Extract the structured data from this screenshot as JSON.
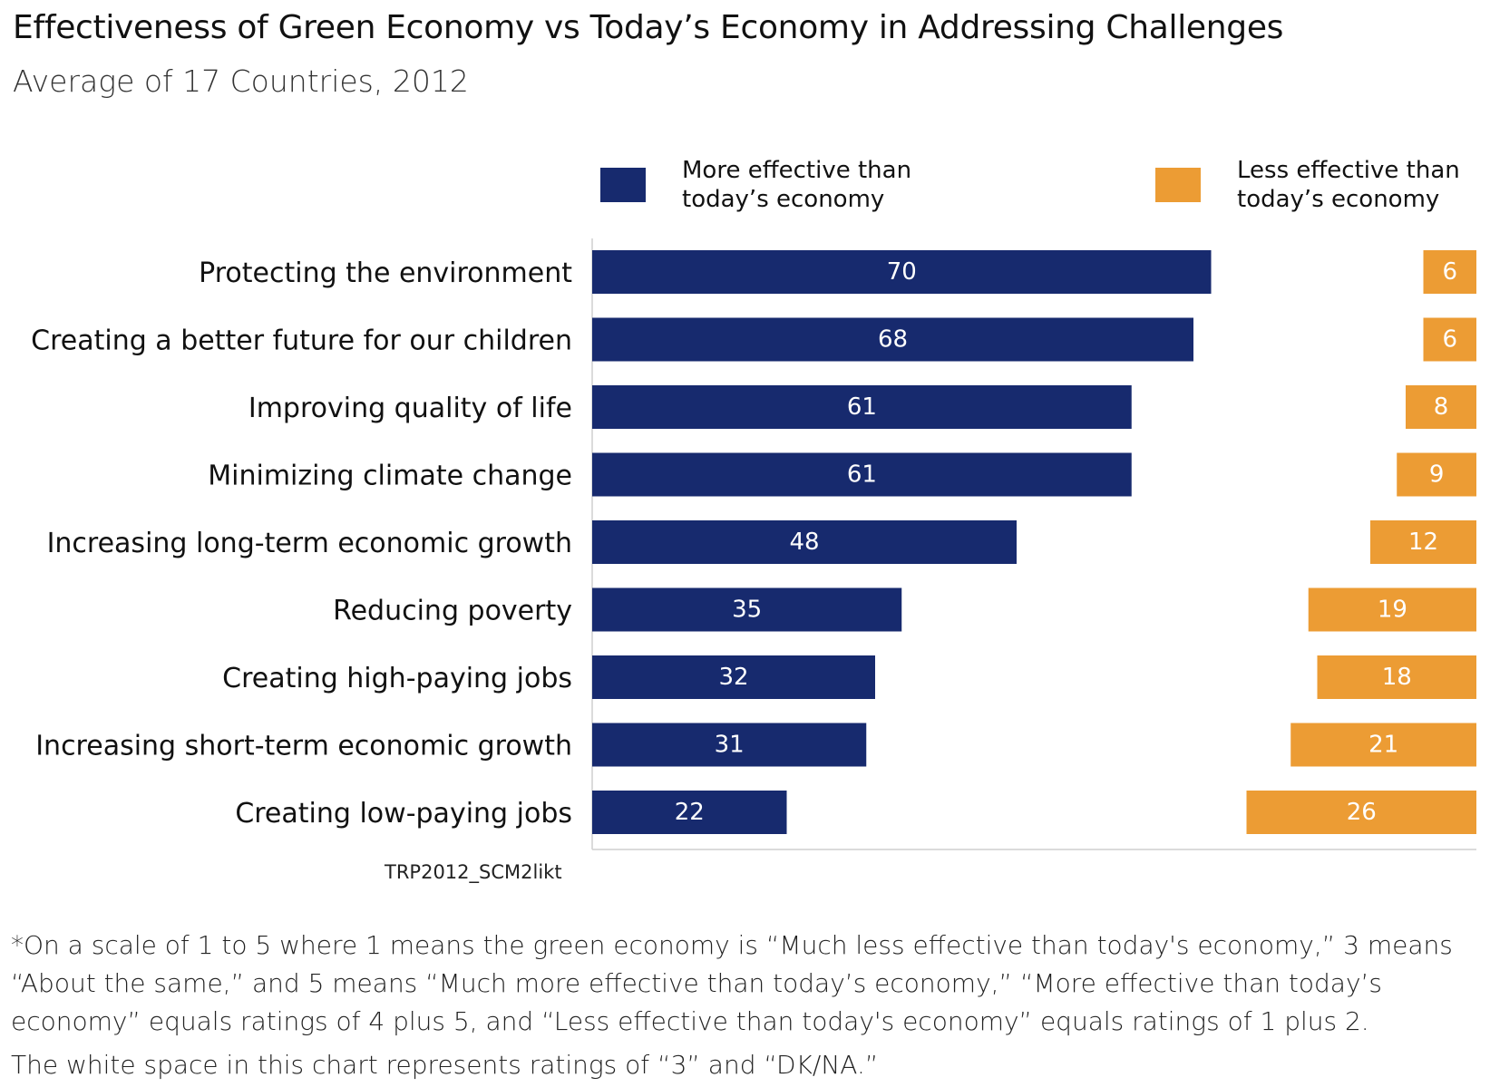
{
  "header": {
    "title": "Effectiveness of Green Economy vs Today’s Economy in Addressing Challenges",
    "subtitle": "Average of 17 Countries, 2012"
  },
  "legend": {
    "more": "More effective than today’s economy",
    "less": "Less effective than today’s economy"
  },
  "colors": {
    "more": "#172a6e",
    "less": "#ec9c34"
  },
  "source": "TRP2012_SCM2likt",
  "footnote": "*On a scale of 1 to 5 where 1 means the green economy is “Much less effective than today's economy,”  3 means “About the same,” and 5 means “Much more effective than today’s economy,” “More effective than today’s economy” equals ratings of 4 plus 5, and “Less effective than today's economy” equals ratings of 1 plus 2.",
  "footnote2": "The white space in this chart represents ratings of “3” and “DK/NA.”",
  "chart_data": {
    "type": "bar",
    "orientation": "horizontal",
    "stacked": "diverging-100",
    "xlim": [
      0,
      100
    ],
    "grid": false,
    "legend_position": "top",
    "categories": [
      "Protecting the environment",
      "Creating a better future for our children",
      "Improving quality of life",
      "Minimizing climate change",
      "Increasing long-term economic growth",
      "Reducing poverty",
      "Creating high-paying jobs",
      "Increasing short-term economic growth",
      "Creating low-paying jobs"
    ],
    "series": [
      {
        "name": "More effective than today’s economy",
        "values": [
          70,
          68,
          61,
          61,
          48,
          35,
          32,
          31,
          22
        ]
      },
      {
        "name": "Less effective than today’s economy",
        "values": [
          6,
          6,
          8,
          9,
          12,
          19,
          18,
          21,
          26
        ]
      }
    ]
  }
}
